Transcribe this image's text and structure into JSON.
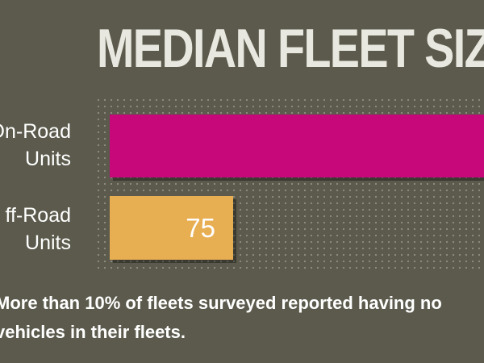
{
  "chart_data": {
    "type": "bar",
    "orientation": "horizontal",
    "title": "MEDIAN FLEET SIZ",
    "categories": [
      "On-Road Units",
      "Off-Road Units"
    ],
    "category_display": [
      [
        "On-Road",
        "Units"
      ],
      [
        "ff-Road",
        "Units"
      ]
    ],
    "values": [
      null,
      75
    ],
    "value_labels": [
      "",
      "75"
    ],
    "fraction_of_visible_width": [
      1.0,
      0.33
    ],
    "colors": [
      "#c7087a",
      "#e8ae52"
    ],
    "grid": "dotted background",
    "xlabel": "",
    "ylabel": ""
  },
  "footnote": {
    "line1": "More than 10% of fleets surveyed reported having no",
    "line2": "vehicles in their fleets."
  }
}
